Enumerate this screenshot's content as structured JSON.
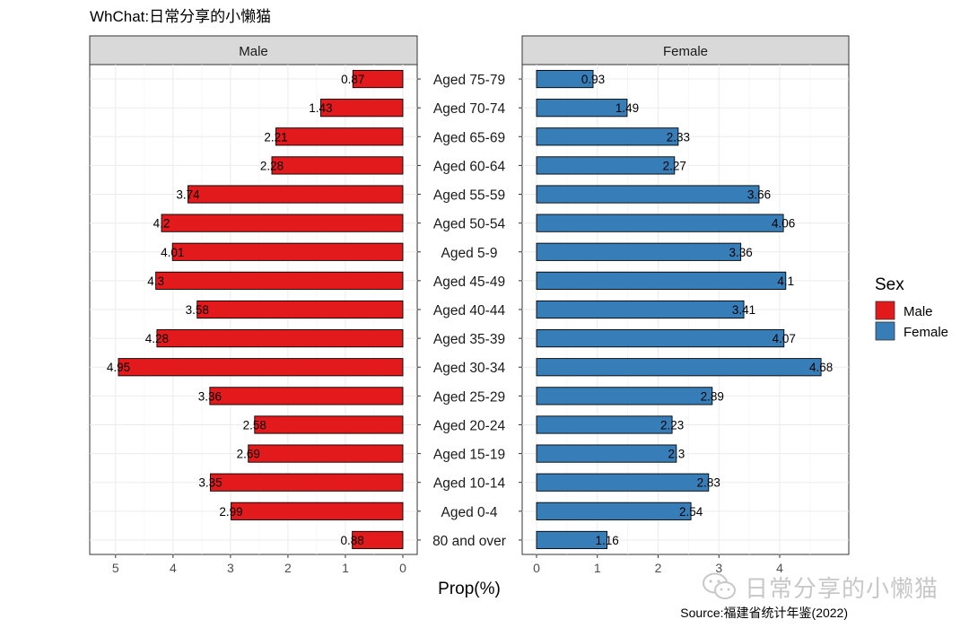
{
  "chart_data": {
    "type": "bar",
    "title": "WhChat:日常分享的小懒猫",
    "xlabel": "Prop(%)",
    "caption": "Source:福建省统计年鉴(2022)",
    "legend": {
      "title": "Sex",
      "position": "right"
    },
    "categories": [
      "Aged 75-79",
      "Aged 70-74",
      "Aged 65-69",
      "Aged 60-64",
      "Aged 55-59",
      "Aged 50-54",
      "Aged 5-9",
      "Aged 45-49",
      "Aged 40-44",
      "Aged 35-39",
      "Aged 30-34",
      "Aged 25-29",
      "Aged 20-24",
      "Aged 15-19",
      "Aged 10-14",
      "Aged 0-4",
      "80 and over"
    ],
    "panels": [
      {
        "name": "Male",
        "color": "#E31A1C",
        "reversed": true,
        "xlim": [
          0,
          5.2
        ],
        "ticks": [
          5,
          4,
          3,
          2,
          1,
          0
        ],
        "values": [
          0.87,
          1.43,
          2.21,
          2.28,
          3.74,
          4.2,
          4.01,
          4.3,
          3.58,
          4.28,
          4.95,
          3.36,
          2.58,
          2.69,
          3.35,
          2.99,
          0.88
        ]
      },
      {
        "name": "Female",
        "color": "#377EB8",
        "reversed": false,
        "xlim": [
          0,
          4.9
        ],
        "ticks": [
          0,
          1,
          2,
          3,
          4
        ],
        "values": [
          0.93,
          1.49,
          2.33,
          2.27,
          3.66,
          4.06,
          3.36,
          4.1,
          3.41,
          4.07,
          4.68,
          2.89,
          2.23,
          2.3,
          2.83,
          2.54,
          1.16
        ]
      }
    ],
    "grid": true
  },
  "watermark": {
    "text": "日常分享的小懒猫",
    "icon": "wechat-icon"
  }
}
